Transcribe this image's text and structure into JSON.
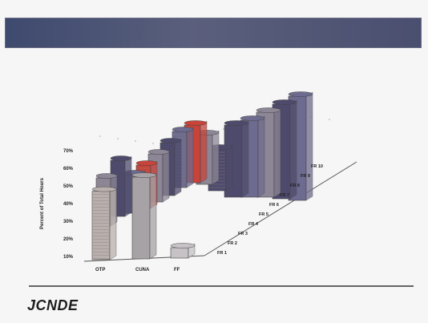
{
  "slide": {
    "banner_text": "",
    "footer_logo": "JCNDE",
    "footer_subtitle": "",
    "footer_copyright": "",
    "page_number": "",
    "bottom_legend": ""
  },
  "chart_data": {
    "type": "bar",
    "style": "3d-column",
    "title": "",
    "xlabel": "",
    "ylabel": "Percent of Total Hours",
    "ylim": [
      10,
      70
    ],
    "yticks": [
      "10%",
      "20%",
      "30%",
      "40%",
      "50%",
      "60%",
      "70%"
    ],
    "categories": [
      "OTP",
      "CUNA",
      "FF"
    ],
    "depth_labels": [
      "FR 1",
      "FR 2",
      "FR 3",
      "FR 4",
      "FR 5",
      "FR 6",
      "FR 7",
      "FR 8",
      "FR 9",
      "FR 10"
    ],
    "front_series": [
      {
        "category": "OTP",
        "value": 47
      },
      {
        "category": "CUNA",
        "value": 55
      },
      {
        "category": "FF",
        "value": 15
      }
    ],
    "colors": {
      "otp": "#b9b0ad",
      "cuna": "#a7a2a6",
      "ff": "#c7c2c6",
      "rear1": "#6d6b8f",
      "rear2": "#4e4a6c",
      "rear3": "#8d8696",
      "accent": "#c8443a"
    },
    "grid": false,
    "legend": "none"
  }
}
